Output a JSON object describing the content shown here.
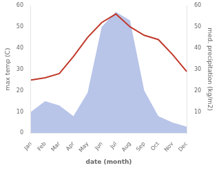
{
  "chart_data": {
    "type": "line",
    "xlabel": "date (month)",
    "ylabel": "max temp (C)",
    "y2label": "med. precipitation (kg/m2)",
    "categories": [
      "Jan",
      "Feb",
      "Mar",
      "Apr",
      "May",
      "Jun",
      "Jul",
      "Aug",
      "Sep",
      "Oct",
      "Nov",
      "Dec"
    ],
    "series": [
      {
        "type": "area",
        "color": "#b8c4e8",
        "axis": "y2",
        "values": [
          10,
          15,
          13,
          8,
          19,
          50,
          57,
          53,
          20,
          8,
          5,
          3
        ]
      },
      {
        "type": "line",
        "color": "#c0392b",
        "values": [
          25,
          26,
          28,
          36,
          45,
          52,
          56,
          50,
          46,
          44,
          37,
          29
        ]
      }
    ],
    "ylim": [
      0,
      60
    ],
    "yticks": [
      0,
      10,
      20,
      30,
      40,
      50,
      60
    ],
    "y2lim": [
      0,
      60
    ],
    "y2ticks": [
      10,
      20,
      30,
      40,
      50,
      60
    ],
    "grid": false
  }
}
